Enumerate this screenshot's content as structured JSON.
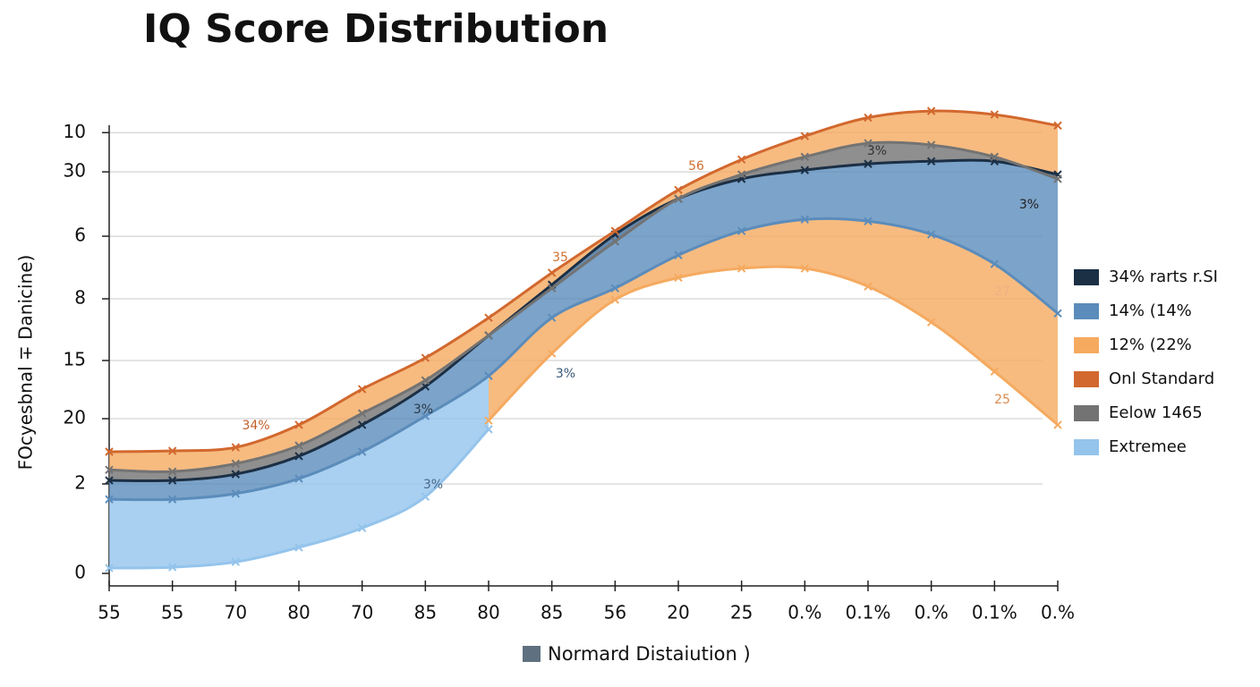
{
  "chart_data": {
    "type": "area",
    "title": "IQ Score Distribution",
    "y_label": "FOcyesbnal ∓ Danicine)",
    "x_label": "Normard Distaiution )",
    "categories": [
      "55",
      "55",
      "70",
      "80",
      "70",
      "85",
      "80",
      "85",
      "56",
      "20",
      "25",
      "0.%",
      "0.1%",
      "0.%",
      "0.1%",
      "0.%"
    ],
    "ylim": [
      0,
      110
    ],
    "yticks": [
      0,
      {
        "value": 20.3,
        "label": "2"
      },
      {
        "value": 35.1,
        "label": "20"
      },
      {
        "value": 48.3,
        "label": "15"
      },
      {
        "value": 62.3,
        "label": "8"
      },
      {
        "value": 76.5,
        "label": "6"
      },
      {
        "value": 91.1,
        "label": "30"
      },
      {
        "value": 100,
        "label": "10"
      }
    ],
    "grid": true,
    "series": [
      {
        "name": "34% rarts r.SI",
        "color": "#1b2f45",
        "values": [
          21.1,
          21.1,
          22.5,
          26.6,
          33.7,
          42.4,
          54.0,
          65.5,
          76.9,
          85.0,
          89.5,
          91.5,
          92.9,
          93.5,
          93.5,
          90.5
        ]
      },
      {
        "name": "14% (14%",
        "color": "#5b8cbb",
        "values": [
          16.8,
          16.8,
          18.1,
          21.5,
          27.6,
          35.7,
          44.8,
          58.0,
          64.7,
          72.2,
          77.7,
          80.3,
          79.9,
          76.9,
          70.2,
          59.0
        ]
      },
      {
        "name": "12% (22%",
        "color": "#f5aa60",
        "values": [
          null,
          null,
          null,
          null,
          null,
          null,
          34.7,
          49.9,
          62.1,
          67.1,
          69.2,
          69.2,
          65.1,
          57.0,
          45.8,
          33.7
        ]
      },
      {
        "name": "Onl Standard",
        "color": "#d2682e",
        "values": [
          27.6,
          27.8,
          28.6,
          33.7,
          41.8,
          48.9,
          58.0,
          68.2,
          77.7,
          87.0,
          93.9,
          99.2,
          103.4,
          104.9,
          104.1,
          101.6
        ]
      },
      {
        "name": "Eelow 1465",
        "color": "#737373",
        "values": [
          23.5,
          23.1,
          24.9,
          29.0,
          36.3,
          43.8,
          54.0,
          64.7,
          75.3,
          85.0,
          90.5,
          94.5,
          97.6,
          97.2,
          94.5,
          89.5
        ]
      },
      {
        "name": "Extremee",
        "color": "#94c4ec",
        "values": [
          1.2,
          1.4,
          2.6,
          5.9,
          10.3,
          17.4,
          32.7,
          null,
          null,
          null,
          null,
          null,
          null,
          null,
          null,
          null
        ]
      }
    ],
    "annotations": [
      "34%",
      "3%",
      "3%",
      "35",
      "3%",
      "56",
      "3%",
      "3%",
      "27",
      "25"
    ]
  }
}
